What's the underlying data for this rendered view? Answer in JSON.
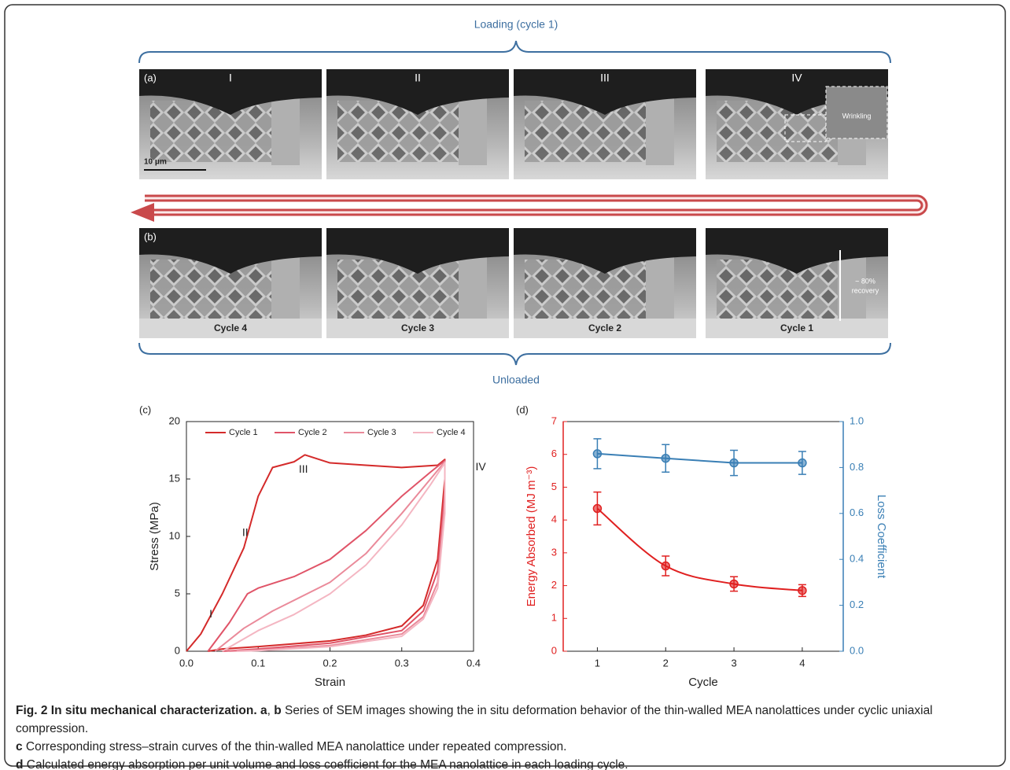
{
  "figure": {
    "top_label": "Loading (cycle 1)",
    "bottom_label": "Unloaded",
    "panel_a": {
      "label": "(a)",
      "stages": [
        "I",
        "II",
        "III",
        "IV"
      ],
      "scale_bar": "10 μm",
      "inset": "Wrinkling"
    },
    "panel_b": {
      "label": "(b)",
      "cycles": [
        "Cycle 4",
        "Cycle 3",
        "Cycle 2",
        "Cycle 1"
      ],
      "recovery": [
        "~ 80%",
        "recovery"
      ]
    }
  },
  "chart_data": [
    {
      "type": "line",
      "panel": "(c)",
      "xlabel": "Strain",
      "ylabel": "Stress (MPa)",
      "xlim": [
        0,
        0.4
      ],
      "ylim": [
        0,
        20
      ],
      "xticks": [
        {
          "value": 0,
          "label": "0.0"
        },
        0.1,
        0.2,
        0.3,
        0.4
      ],
      "yticks": [
        0,
        5,
        10,
        15,
        20
      ],
      "legend": "top",
      "annotations": [
        {
          "text": "I",
          "x": 0.034,
          "y": 3.2
        },
        {
          "text": "II",
          "x": 0.082,
          "y": 10.3
        },
        {
          "text": "III",
          "x": 0.163,
          "y": 15.8
        },
        {
          "text": "IV",
          "x": 0.41,
          "y": 16
        }
      ],
      "series": [
        {
          "name": "Cycle 1",
          "color": "#d42a2a",
          "x": [
            0,
            0.02,
            0.05,
            0.08,
            0.1,
            0.12,
            0.15,
            0.165,
            0.2,
            0.25,
            0.3,
            0.35,
            0.36,
            0.36,
            0.35,
            0.33,
            0.3,
            0.25,
            0.2,
            0.1,
            0.05,
            0.03
          ],
          "values": [
            0,
            1.5,
            5,
            9,
            13.5,
            16,
            16.5,
            17.1,
            16.4,
            16.2,
            16,
            16.2,
            16.7,
            15,
            8,
            4,
            2.2,
            1.4,
            0.9,
            0.4,
            0.2,
            0
          ]
        },
        {
          "name": "Cycle 2",
          "color": "#e05468",
          "x": [
            0.03,
            0.06,
            0.085,
            0.1,
            0.15,
            0.2,
            0.25,
            0.3,
            0.34,
            0.36,
            0.36,
            0.35,
            0.33,
            0.3,
            0.2,
            0.1,
            0.05
          ],
          "values": [
            0,
            2.5,
            5,
            5.5,
            6.5,
            8,
            10.5,
            13.5,
            15.6,
            16.6,
            14,
            7,
            3.5,
            1.8,
            0.7,
            0.2,
            0
          ]
        },
        {
          "name": "Cycle 3",
          "color": "#ea8a9a",
          "x": [
            0.04,
            0.08,
            0.12,
            0.2,
            0.25,
            0.3,
            0.34,
            0.36,
            0.36,
            0.35,
            0.33,
            0.3,
            0.2,
            0.1,
            0.06
          ],
          "values": [
            0,
            2,
            3.5,
            6,
            8.5,
            12,
            15,
            16.5,
            13,
            6,
            3,
            1.5,
            0.5,
            0.1,
            0
          ]
        },
        {
          "name": "Cycle 4",
          "color": "#f4b6c2",
          "x": [
            0.05,
            0.1,
            0.15,
            0.2,
            0.25,
            0.3,
            0.34,
            0.36,
            0.36,
            0.35,
            0.33,
            0.3,
            0.2,
            0.1,
            0.07
          ],
          "values": [
            0,
            1.8,
            3.2,
            5,
            7.5,
            11,
            14.5,
            16.4,
            12,
            5.5,
            2.8,
            1.3,
            0.4,
            0.05,
            0
          ]
        }
      ]
    },
    {
      "type": "line",
      "panel": "(d)",
      "xlabel": "Cycle",
      "ylabel": "Energy Absorbed (MJ m⁻³)",
      "y2label": "Loss Coefficient",
      "xlim": [
        0.5,
        4.6
      ],
      "ylim": [
        0,
        7
      ],
      "y2lim": [
        0,
        1
      ],
      "xticks": [
        1,
        2,
        3,
        4
      ],
      "yticks": [
        0,
        1,
        2,
        3,
        4,
        5,
        6,
        7
      ],
      "y2ticks": [
        {
          "value": 0,
          "label": "0.0"
        },
        0.2,
        0.4,
        0.6,
        0.8,
        {
          "value": 1,
          "label": "1.0"
        }
      ],
      "series": [
        {
          "color": "#e02020",
          "smooth": true,
          "x": [
            1,
            2,
            3,
            4
          ],
          "values": [
            4.35,
            2.6,
            2.05,
            1.85
          ],
          "errors": [
            0.5,
            0.3,
            0.22,
            0.18
          ]
        },
        {
          "color": "#3a7fb5",
          "axis": "y2",
          "x": [
            1,
            2,
            3,
            4
          ],
          "values": [
            0.86,
            0.84,
            0.82,
            0.82
          ],
          "errors": [
            0.065,
            0.06,
            0.055,
            0.05
          ]
        }
      ]
    }
  ],
  "caption": [
    [
      {
        "text": "Fig. 2 In situ mechanical characterization. a",
        "bold": true
      },
      {
        "text": ", ",
        "bold": false
      },
      {
        "text": "b",
        "bold": true
      },
      {
        "text": " Series of SEM images showing the in situ deformation behavior of the thin-walled MEA nanolattices under cyclic uniaxial compression.",
        "bold": false
      }
    ],
    [
      {
        "text": "c",
        "bold": true
      },
      {
        "text": " Corresponding stress–strain curves of the thin-walled MEA nanolattice under repeated compression.",
        "bold": false
      }
    ],
    [
      {
        "text": "d",
        "bold": true
      },
      {
        "text": " Calculated energy absorption per unit volume and loss coefficient for the MEA nanolattice in each loading cycle.",
        "bold": false
      }
    ]
  ]
}
